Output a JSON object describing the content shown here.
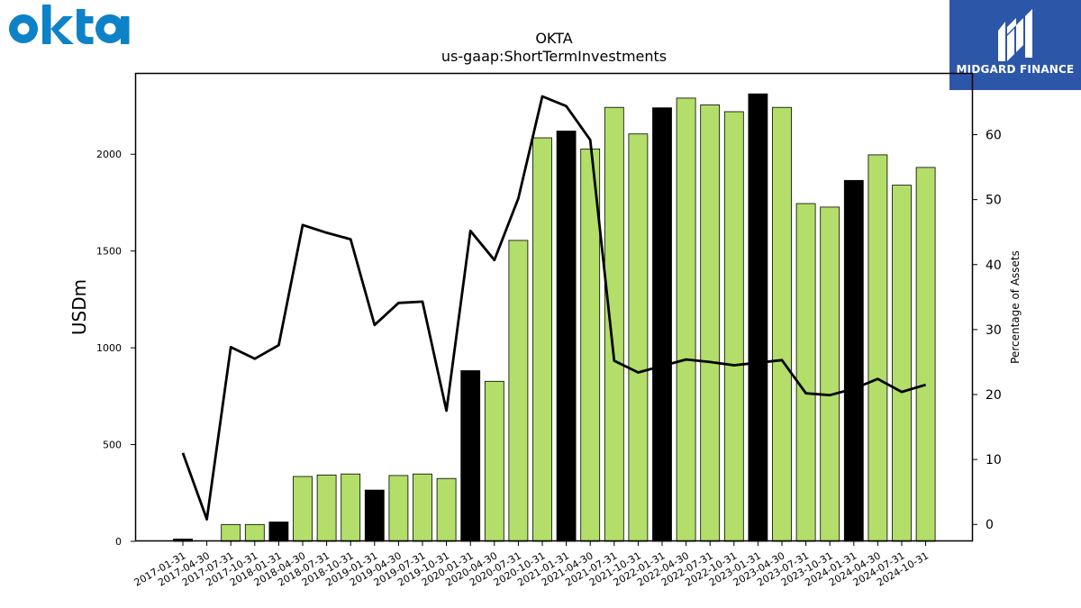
{
  "logos": {
    "left": "okta",
    "right": "MIDGARD FINANCE"
  },
  "chart_data": {
    "type": "bar",
    "title": "OKTA",
    "subtitle": "us-gaap:ShortTermInvestments",
    "ylabel": "USDm",
    "y2label": "Percentage of Assets",
    "ylim": [
      0,
      2420
    ],
    "y2lim": [
      -2.6,
      69.5
    ],
    "yticks": [
      0,
      500,
      1000,
      1500,
      2000
    ],
    "y2ticks": [
      0,
      10,
      20,
      30,
      40,
      50,
      60
    ],
    "colors": {
      "bar": "#b3de69",
      "highlight": "#000000",
      "line": "#000000"
    },
    "categories": [
      "2017-01-31",
      "2017-04-30",
      "2017-07-31",
      "2017-10-31",
      "2018-01-31",
      "2018-04-30",
      "2018-07-31",
      "2018-10-31",
      "2019-01-31",
      "2019-04-30",
      "2019-07-31",
      "2019-10-31",
      "2020-01-31",
      "2020-04-30",
      "2020-07-31",
      "2020-10-31",
      "2021-01-31",
      "2021-04-30",
      "2021-07-31",
      "2021-10-31",
      "2022-01-31",
      "2022-04-30",
      "2022-07-31",
      "2022-10-31",
      "2023-01-31",
      "2023-04-30",
      "2023-07-31",
      "2023-10-31",
      "2024-01-31",
      "2024-04-30",
      "2024-07-31",
      "2024-10-31"
    ],
    "series": [
      {
        "type": "bar",
        "values": [
          12,
          0,
          87,
          87,
          100,
          335,
          343,
          348,
          265,
          340,
          348,
          325,
          882,
          827,
          1555,
          2085,
          2120,
          2027,
          2242,
          2105,
          2240,
          2290,
          2255,
          2220,
          2312,
          2242,
          1745,
          1727,
          1865,
          1997,
          1840,
          1932
        ],
        "highlight": [
          true,
          false,
          false,
          false,
          true,
          false,
          false,
          false,
          true,
          false,
          false,
          false,
          true,
          false,
          false,
          false,
          true,
          false,
          false,
          false,
          true,
          false,
          false,
          false,
          true,
          false,
          false,
          false,
          true,
          false,
          false,
          false
        ]
      },
      {
        "type": "line",
        "axis": "right",
        "values": [
          11.0,
          0.8,
          27.3,
          25.5,
          27.6,
          46.1,
          44.9,
          43.9,
          30.7,
          34.1,
          34.3,
          17.5,
          45.2,
          40.7,
          50.2,
          65.9,
          64.4,
          59.2,
          25.2,
          23.4,
          24.4,
          25.4,
          25.0,
          24.5,
          24.9,
          25.3,
          20.2,
          19.9,
          20.9,
          22.4,
          20.4,
          21.5
        ]
      }
    ]
  }
}
